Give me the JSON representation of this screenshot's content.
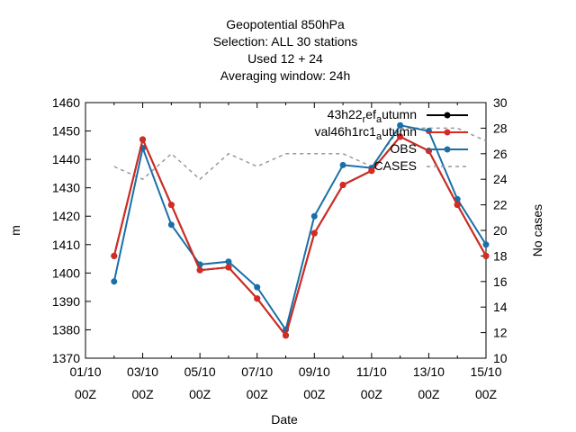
{
  "chart_data": {
    "type": "line",
    "title_lines": [
      "Geopotential 850hPa",
      "Selection: ALL     30 stations",
      "Used  12  + 24",
      "Averaging window: 24h"
    ],
    "xlabel": "Date",
    "ylabel": "m",
    "y2label": "No cases",
    "ylim": [
      1370,
      1460
    ],
    "y2lim": [
      10,
      30
    ],
    "x_ticks": [
      {
        "top": "01/10",
        "bottom": "00Z"
      },
      {
        "top": "03/10",
        "bottom": "00Z"
      },
      {
        "top": "05/10",
        "bottom": "00Z"
      },
      {
        "top": "07/10",
        "bottom": "00Z"
      },
      {
        "top": "09/10",
        "bottom": "00Z"
      },
      {
        "top": "11/10",
        "bottom": "00Z"
      },
      {
        "top": "13/10",
        "bottom": "00Z"
      },
      {
        "top": "15/10",
        "bottom": "00Z"
      }
    ],
    "y_ticks": [
      "1370",
      "1380",
      "1390",
      "1400",
      "1410",
      "1420",
      "1430",
      "1440",
      "1450",
      "1460"
    ],
    "y2_ticks": [
      "10",
      "12",
      "14",
      "16",
      "18",
      "20",
      "22",
      "24",
      "26",
      "28",
      "30"
    ],
    "x_days": [
      2,
      3,
      4,
      5,
      6,
      7,
      8,
      9,
      10,
      11,
      12,
      13,
      14,
      15
    ],
    "legend_position": "top-right",
    "grid": false,
    "series": [
      {
        "name_main": "43h22",
        "name_sub": "r",
        "name_rest": "ef",
        "name_sub2": "a",
        "name_tail": "utumn",
        "color": "#000000",
        "style": "line-points",
        "values": [
          1406,
          1447,
          1424,
          1401,
          1402,
          1391,
          1378,
          1414,
          1431,
          1436,
          1448,
          1443,
          1424,
          1406
        ]
      },
      {
        "name_main": "val46h1rc1",
        "name_sub": "a",
        "name_tail": "utumn",
        "color": "#d62b22",
        "style": "line-points",
        "values": [
          1406,
          1447,
          1424,
          1401,
          1402,
          1391,
          1378,
          1414,
          1431,
          1436,
          1448,
          1443,
          1424,
          1406
        ]
      },
      {
        "name": "OBS",
        "color": "#1a6fa8",
        "style": "line-points",
        "values": [
          1397,
          1444,
          1417,
          1403,
          1404,
          1395,
          1380,
          1420,
          1438,
          1437,
          1452,
          1450,
          1426,
          1410
        ]
      },
      {
        "name": "CASES",
        "color": "#999999",
        "style": "dashed",
        "axis": "y2",
        "values": [
          25,
          24,
          26,
          24,
          26,
          25,
          26,
          26,
          26,
          25,
          28,
          28,
          28,
          27
        ]
      }
    ]
  }
}
